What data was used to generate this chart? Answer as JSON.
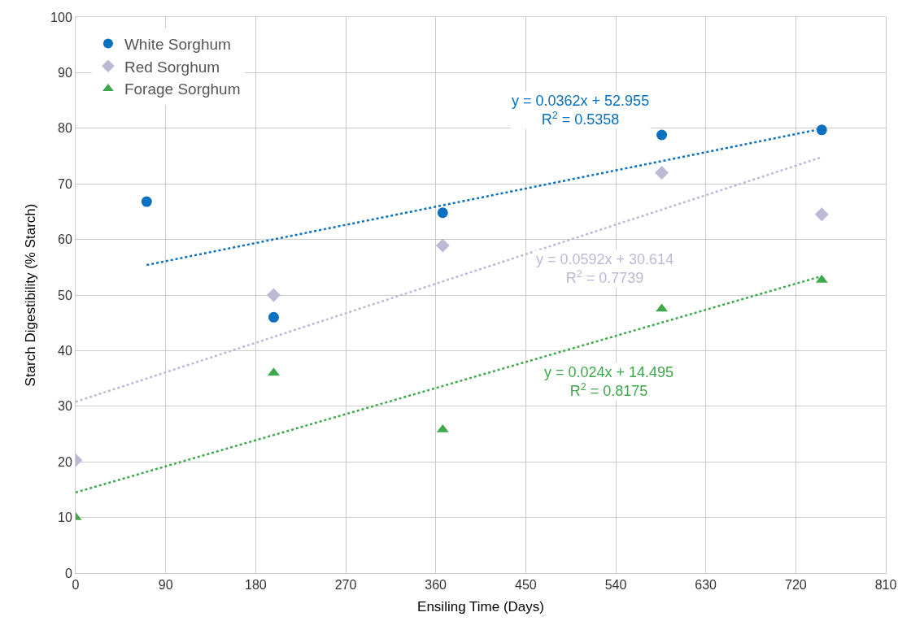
{
  "chart_data": {
    "type": "scatter",
    "xlabel": "Ensiling Time (Days)",
    "ylabel": "Starch Digestibility (% Starch)",
    "xlim": [
      0,
      810
    ],
    "xticks": [
      0,
      90,
      180,
      270,
      360,
      450,
      540,
      630,
      720,
      810
    ],
    "ylim": [
      0,
      100
    ],
    "yticks": [
      0,
      10,
      20,
      30,
      40,
      50,
      60,
      70,
      80,
      90,
      100
    ],
    "grid": true,
    "legend": "top left",
    "series": [
      {
        "name": "White Sorghum",
        "color": "#0a70c0",
        "marker": "circle",
        "x": [
          71,
          198,
          367,
          586,
          746
        ],
        "values": [
          66.8,
          46.0,
          64.8,
          78.8,
          79.7
        ]
      },
      {
        "name": "Red Sorghum",
        "color": "#bbbad5",
        "marker": "diamond",
        "x": [
          0,
          198,
          367,
          586,
          746
        ],
        "values": [
          20.3,
          50.0,
          58.9,
          72.0,
          64.5
        ]
      },
      {
        "name": "Forage Sorghum",
        "color": "#3ea94a",
        "marker": "triangle",
        "x": [
          0,
          198,
          367,
          586,
          746
        ],
        "values": [
          10.0,
          36.0,
          25.8,
          47.5,
          52.7
        ]
      },
      {
        "type": "line",
        "color": "#0a70c0",
        "line_style": "dotted",
        "marker": "none",
        "x": [
          71,
          746
        ],
        "values": [
          55.4,
          79.9
        ]
      },
      {
        "type": "line",
        "color": "#bbbad5",
        "line_style": "dotted",
        "marker": "none",
        "x": [
          0,
          746
        ],
        "values": [
          30.8,
          74.8
        ]
      },
      {
        "type": "line",
        "color": "#3ea94a",
        "line_style": "dotted",
        "marker": "none",
        "x": [
          0,
          746
        ],
        "values": [
          14.5,
          53.4
        ]
      }
    ],
    "annotations": [
      "y = 0.0362x + 52.955\nR$^{2}$ = 0.5358",
      "y = 0.0592x + 30.614\nR$^{2}$ = 0.7739",
      "y = 0.024x + 14.495\nR$^{2}$ = 0.8175"
    ]
  }
}
